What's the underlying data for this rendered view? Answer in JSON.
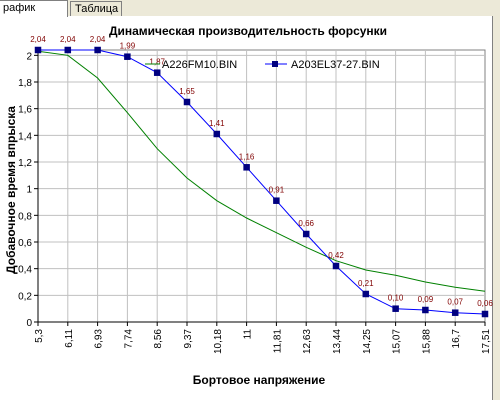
{
  "tabs": [
    {
      "label": "рафик",
      "active": true
    },
    {
      "label": "Таблица",
      "active": false
    }
  ],
  "chart_data": {
    "type": "line",
    "title": "Динамическая производительность форсунки",
    "xlabel": "Бортовое напряжение",
    "ylabel": "Добавочное время впрыска",
    "x_tick_labels": [
      "5,3",
      "6,11",
      "6,93",
      "7,74",
      "8,56",
      "9,37",
      "10,18",
      "11",
      "11,81",
      "12,63",
      "13,44",
      "14,25",
      "15,07",
      "15,88",
      "16,7",
      "17,51"
    ],
    "y_tick_labels": [
      "0",
      "0,2",
      "0,4",
      "0,6",
      "0,8",
      "1",
      "1,2",
      "1,4",
      "1,6",
      "1,8",
      "2"
    ],
    "xlim": [
      5.3,
      17.51
    ],
    "ylim": [
      0,
      2.04
    ],
    "grid": true,
    "legend_placement": "top",
    "series": [
      {
        "name": "A226FM10.BIN",
        "color": "#008000",
        "marker": "none",
        "x": [
          5.3,
          6.11,
          6.93,
          7.74,
          8.56,
          9.37,
          10.18,
          11,
          11.81,
          12.63,
          13.44,
          14.25,
          15.07,
          15.88,
          16.7,
          17.51
        ],
        "values": [
          2.03,
          2.0,
          1.83,
          1.57,
          1.3,
          1.08,
          0.91,
          0.78,
          0.67,
          0.56,
          0.46,
          0.39,
          0.35,
          0.3,
          0.26,
          0.23
        ]
      },
      {
        "name": "A203EL37-27.BIN",
        "color": "#0000ff",
        "marker": "square",
        "marker_color": "#000080",
        "x": [
          5.3,
          6.11,
          6.93,
          7.74,
          8.56,
          9.37,
          10.18,
          11,
          11.81,
          12.63,
          13.44,
          14.25,
          15.07,
          15.88,
          16.7,
          17.51
        ],
        "values": [
          2.04,
          2.04,
          2.04,
          1.99,
          1.87,
          1.65,
          1.41,
          1.16,
          0.91,
          0.66,
          0.42,
          0.21,
          0.1,
          0.09,
          0.07,
          0.06
        ],
        "data_labels": [
          "2,04",
          "2,04",
          "2,04",
          "1,99",
          "1,87",
          "1,65",
          "1,41",
          "1,16",
          "0,91",
          "0,66",
          "0,42",
          "0,21",
          "0,10",
          "0,09",
          "0,07",
          "0,06"
        ],
        "data_label_color": "#800000"
      }
    ]
  }
}
